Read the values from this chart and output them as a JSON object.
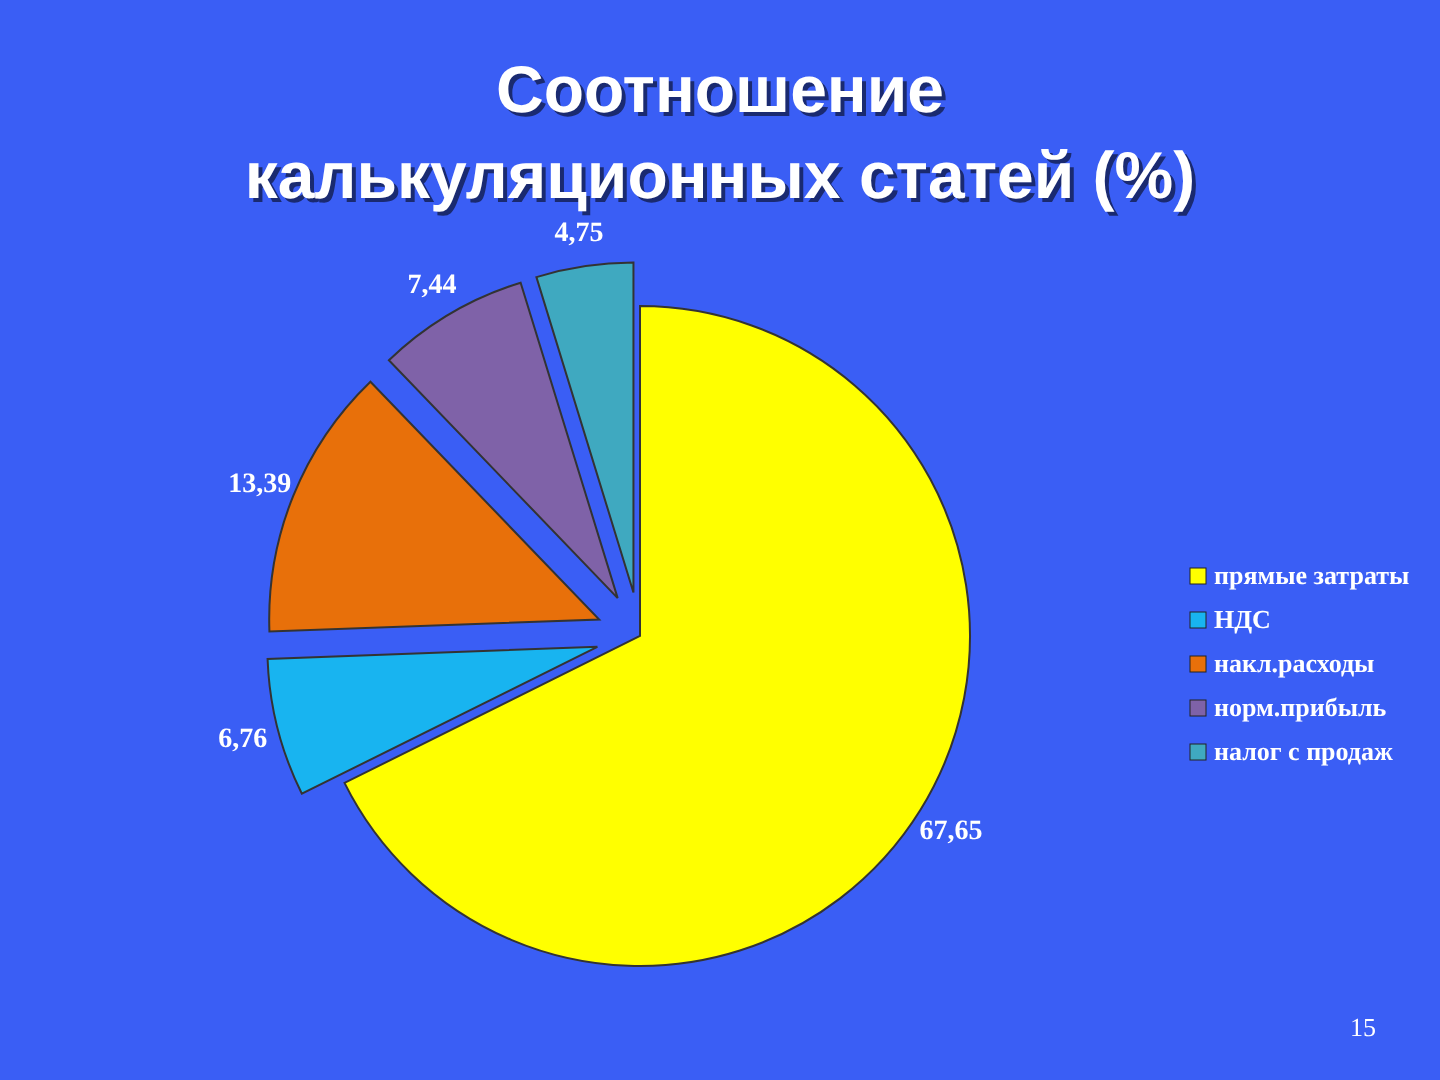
{
  "chart_data": {
    "type": "pie",
    "title": "Соотношение калькуляционных статей (%)",
    "categories": [
      "прямые затраты",
      "НДС",
      "накл.расходы",
      "норм.прибыль",
      "налог с продаж"
    ],
    "values": [
      67.65,
      6.76,
      13.39,
      7.44,
      4.75
    ],
    "colors": [
      "#ffff00",
      "#18b4f0",
      "#e8700a",
      "#7f62a8",
      "#3fa9c0"
    ],
    "value_labels": [
      "67,65",
      "6,76",
      "13,39",
      "7,44",
      "4,75"
    ],
    "legend": "right",
    "annotations": [
      "15"
    ]
  }
}
